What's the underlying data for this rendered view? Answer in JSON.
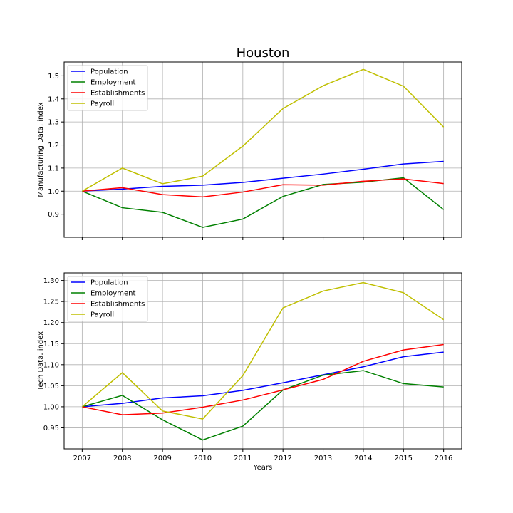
{
  "figure_title": "Houston",
  "chart_data": [
    {
      "type": "line",
      "title": "",
      "xlabel": "",
      "ylabel": "Manufacturing Data, index",
      "x": [
        2007,
        2008,
        2009,
        2010,
        2011,
        2012,
        2013,
        2014,
        2015,
        2016
      ],
      "xlim": [
        2006.55,
        2016.45
      ],
      "ylim": [
        0.8,
        1.56
      ],
      "yticks": [
        0.9,
        1.0,
        1.1,
        1.2,
        1.3,
        1.4,
        1.5
      ],
      "ytick_labels": [
        "0.9",
        "1.0",
        "1.1",
        "1.2",
        "1.3",
        "1.4",
        "1.5"
      ],
      "show_xtick_labels": false,
      "grid": true,
      "legend_position": "upper-left",
      "series": [
        {
          "name": "Population",
          "color": "#0000ff",
          "values": [
            1.0,
            1.009,
            1.021,
            1.026,
            1.038,
            1.056,
            1.074,
            1.095,
            1.118,
            1.129
          ]
        },
        {
          "name": "Employment",
          "color": "#008000",
          "values": [
            1.0,
            0.928,
            0.908,
            0.843,
            0.879,
            0.977,
            1.029,
            1.039,
            1.058,
            0.92
          ]
        },
        {
          "name": "Establishments",
          "color": "#ff0000",
          "values": [
            1.0,
            1.015,
            0.985,
            0.975,
            0.996,
            1.028,
            1.026,
            1.043,
            1.053,
            1.033
          ]
        },
        {
          "name": "Payroll",
          "color": "#bfbf00",
          "values": [
            1.0,
            1.1,
            1.032,
            1.065,
            1.195,
            1.358,
            1.457,
            1.528,
            1.455,
            1.278
          ]
        }
      ]
    },
    {
      "type": "line",
      "title": "",
      "xlabel": "Years",
      "ylabel": "Tech Data, index",
      "x": [
        2007,
        2008,
        2009,
        2010,
        2011,
        2012,
        2013,
        2014,
        2015,
        2016
      ],
      "xlim": [
        2006.55,
        2016.45
      ],
      "ylim": [
        0.9,
        1.318
      ],
      "yticks": [
        0.95,
        1.0,
        1.05,
        1.1,
        1.15,
        1.2,
        1.25,
        1.3
      ],
      "ytick_labels": [
        "0.95",
        "1.00",
        "1.05",
        "1.10",
        "1.15",
        "1.20",
        "1.25",
        "1.30"
      ],
      "xtick_labels": [
        "2007",
        "2008",
        "2009",
        "2010",
        "2011",
        "2012",
        "2013",
        "2014",
        "2015",
        "2016"
      ],
      "show_xtick_labels": true,
      "grid": true,
      "legend_position": "upper-left",
      "series": [
        {
          "name": "Population",
          "color": "#0000ff",
          "values": [
            1.0,
            1.008,
            1.021,
            1.026,
            1.039,
            1.057,
            1.076,
            1.095,
            1.119,
            1.13
          ]
        },
        {
          "name": "Employment",
          "color": "#008000",
          "values": [
            1.0,
            1.027,
            0.969,
            0.921,
            0.954,
            1.04,
            1.075,
            1.086,
            1.055,
            1.047
          ]
        },
        {
          "name": "Establishments",
          "color": "#ff0000",
          "values": [
            1.0,
            0.981,
            0.985,
            0.999,
            1.016,
            1.04,
            1.065,
            1.108,
            1.135,
            1.148
          ]
        },
        {
          "name": "Payroll",
          "color": "#bfbf00",
          "values": [
            1.0,
            1.081,
            0.99,
            0.971,
            1.074,
            1.235,
            1.275,
            1.295,
            1.271,
            1.207
          ]
        }
      ]
    }
  ]
}
